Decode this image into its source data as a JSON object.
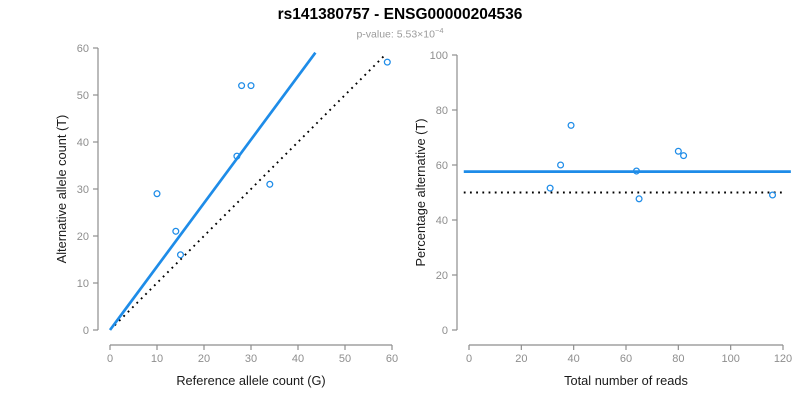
{
  "header": {
    "title": "rs141380757 - ENSG00000204536",
    "pvalue_prefix": "p-value: 5.53×10",
    "pvalue_exponent": "−4"
  },
  "colors": {
    "accent_blue": "#1e8ce8",
    "line_black": "#000000",
    "axis_gray": "#8e8e8e",
    "axis_title_black": "#1a1a1a",
    "subtitle_gray": "#9b9b9b"
  },
  "chart_data": [
    {
      "id": "allele-count-scatter",
      "type": "scatter",
      "title": "",
      "xlabel": "Reference allele count (G)",
      "ylabel": "Alternative allele count (T)",
      "xlim": [
        0,
        60
      ],
      "ylim": [
        0,
        60
      ],
      "xticks": [
        0,
        10,
        20,
        30,
        40,
        50,
        60
      ],
      "yticks": [
        0,
        10,
        20,
        30,
        40,
        50,
        60
      ],
      "grid": false,
      "legend": null,
      "points": [
        [
          10,
          29
        ],
        [
          14,
          21
        ],
        [
          15,
          16
        ],
        [
          27,
          37
        ],
        [
          28,
          52
        ],
        [
          30,
          52
        ],
        [
          34,
          31
        ],
        [
          59,
          57
        ]
      ],
      "lines": [
        {
          "name": "identity-line",
          "style": "dotted",
          "color": "#000000",
          "from": [
            1,
            1
          ],
          "to": [
            58.8,
            58.8
          ]
        },
        {
          "name": "fit-line",
          "style": "solid",
          "color": "#1e8ce8",
          "from": [
            0,
            0
          ],
          "to": [
            43.7,
            59
          ]
        }
      ]
    },
    {
      "id": "percentage-alternative-scatter",
      "type": "scatter",
      "title": "",
      "xlabel": "Total number of reads",
      "ylabel": "Percentage alternative (T)",
      "xlim": [
        0,
        120
      ],
      "ylim": [
        0,
        100
      ],
      "xticks": [
        0,
        20,
        40,
        60,
        80,
        100,
        120
      ],
      "yticks": [
        0,
        20,
        40,
        60,
        80,
        100
      ],
      "grid": false,
      "legend": null,
      "points": [
        [
          39,
          74.4
        ],
        [
          35,
          60.0
        ],
        [
          31,
          51.6
        ],
        [
          64,
          57.8
        ],
        [
          65,
          47.7
        ],
        [
          80,
          65.0
        ],
        [
          82,
          63.4
        ],
        [
          116,
          49.1
        ]
      ],
      "lines": [
        {
          "name": "null-percentage-line",
          "style": "dotted",
          "color": "#000000",
          "from": [
            -2,
            50
          ],
          "to": [
            120,
            50
          ]
        },
        {
          "name": "fit-percentage-line",
          "style": "solid",
          "color": "#1e8ce8",
          "from": [
            -2,
            57.6
          ],
          "to": [
            123,
            57.6
          ]
        }
      ]
    }
  ]
}
